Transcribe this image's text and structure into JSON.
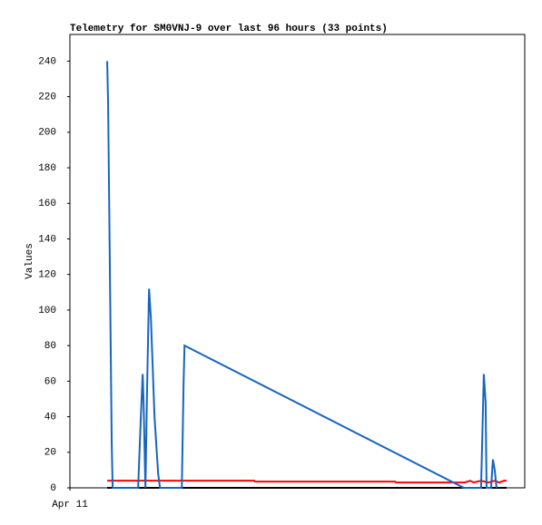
{
  "chart_data": {
    "type": "line",
    "title": "Telemetry for SM0VNJ-9 over last 96 hours (33 points)",
    "y_label": "Values",
    "xlim": [
      0,
      100
    ],
    "xticks": [
      {
        "value": 0,
        "label": "Apr 11"
      }
    ],
    "ylim": [
      0,
      255
    ],
    "yticks": [
      0,
      20,
      40,
      60,
      80,
      100,
      120,
      140,
      160,
      180,
      200,
      220,
      240
    ],
    "series": [
      {
        "color": "#000000",
        "x": [
          8.2,
          96.0
        ],
        "values": [
          0,
          0
        ]
      },
      {
        "color": "#ff0000",
        "x": [
          8.2,
          40.5,
          40.7,
          71.5,
          71.7,
          86.8,
          88.0,
          88.8,
          90.4,
          92.0,
          93.4,
          94.4,
          95.4,
          96.0
        ],
        "values": [
          4,
          4,
          3.5,
          3.5,
          3,
          3,
          4,
          3,
          4,
          3,
          4,
          3,
          4,
          4
        ]
      },
      {
        "color": "#1565c0",
        "x": [
          8.2,
          8.4,
          8.6,
          8.8,
          9.0,
          9.2,
          9.4,
          15.0,
          15.6,
          16.0,
          16.2,
          16.6,
          17.0,
          17.4,
          17.8,
          18.6,
          19.4,
          19.8,
          24.6,
          25.0,
          25.2,
          86.6,
          90.4,
          91.0,
          91.4,
          91.6,
          92.6,
          93.0,
          93.4,
          93.8
        ],
        "values": [
          240,
          216,
          168,
          120,
          72,
          24,
          0,
          0,
          40,
          64,
          48,
          0,
          60,
          112,
          96,
          40,
          8,
          0,
          0,
          60,
          80,
          0,
          0,
          64,
          48,
          0,
          0,
          16,
          10,
          0
        ]
      }
    ]
  }
}
